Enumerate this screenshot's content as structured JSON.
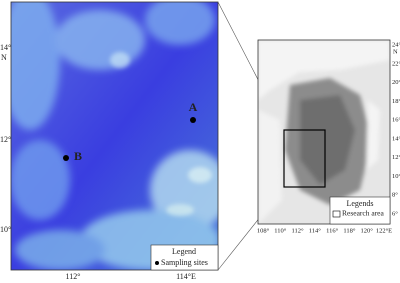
{
  "left_map": {
    "lat_labels": [
      "14°",
      "12°",
      "10°"
    ],
    "lat_hemisphere": "N",
    "lon_labels": [
      "112°",
      "114°E"
    ],
    "sites": [
      {
        "label": "A"
      },
      {
        "label": "B"
      }
    ],
    "legend": {
      "title": "Legend",
      "item": "Sampling sites"
    }
  },
  "right_map": {
    "lat_labels": [
      "24°",
      "22°",
      "20°",
      "18°",
      "16°",
      "14°",
      "12°",
      "10°",
      "8°",
      "6°"
    ],
    "lat_hemisphere": "N",
    "lon_labels": [
      "108°",
      "110°",
      "112°",
      "114°",
      "116°",
      "118°",
      "120°",
      "122°E"
    ],
    "legend": {
      "title": "Legends",
      "item": "Research area"
    }
  }
}
